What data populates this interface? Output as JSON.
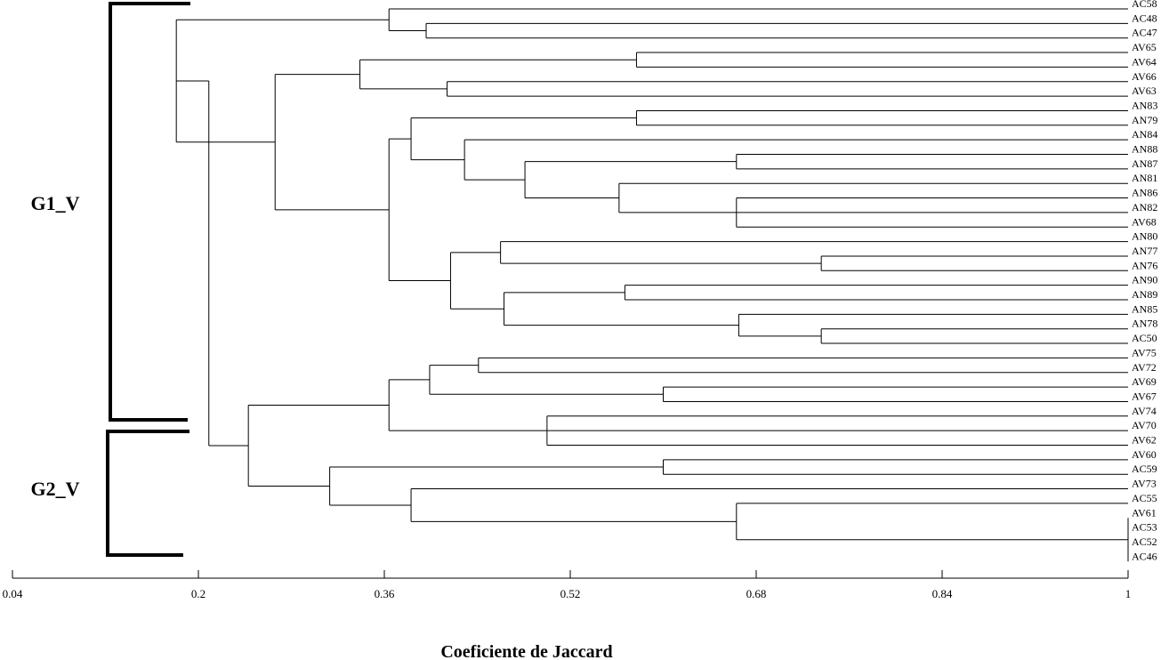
{
  "chart_data": {
    "type": "dendrogram",
    "title": "",
    "xlabel": "Coeficiente de Jaccard",
    "ylabel": "",
    "xlim": [
      0.04,
      1
    ],
    "x_ticks": [
      "0.04",
      "0.2",
      "0.36",
      "0.52",
      "0.68",
      "0.84",
      "1"
    ],
    "leaves": [
      "AC58",
      "AC48",
      "AC47",
      "AV65",
      "AV64",
      "AV66",
      "AV63",
      "AN83",
      "AN79",
      "AN84",
      "AN88",
      "AN87",
      "AN81",
      "AN86",
      "AN82",
      "AV68",
      "AN80",
      "AN77",
      "AN76",
      "AN90",
      "AN89",
      "AN85",
      "AN78",
      "AC50",
      "AV75",
      "AV72",
      "AV69",
      "AV67",
      "AV74",
      "AV70",
      "AV62",
      "AV60",
      "AC59",
      "AV73",
      "AC55",
      "AV61",
      "AC53",
      "AC52",
      "AC46"
    ],
    "groups": [
      {
        "label": "G1_V",
        "from_leaf": "AC58",
        "to_leaf": "AC50"
      },
      {
        "label": "G2_V",
        "from_leaf": "AV75",
        "to_leaf": "AC46"
      }
    ],
    "tree": {
      "s": 0.209,
      "c": [
        {
          "s": 0.181,
          "c": [
            {
              "s": 0.364,
              "c": [
                "AC58",
                {
                  "s": 0.396,
                  "c": [
                    "AC48",
                    "AC47"
                  ]
                }
              ]
            },
            {
              "s": 0.266,
              "c": [
                {
                  "s": 0.339,
                  "c": [
                    {
                      "s": 0.577,
                      "c": [
                        "AV65",
                        "AV64"
                      ]
                    },
                    {
                      "s": 0.414,
                      "c": [
                        "AV66",
                        "AV63"
                      ]
                    }
                  ]
                },
                {
                  "s": 0.364,
                  "c": [
                    {
                      "s": 0.383,
                      "c": [
                        {
                          "s": 0.577,
                          "c": [
                            "AN83",
                            "AN79"
                          ]
                        },
                        {
                          "s": 0.429,
                          "c": [
                            "AN84",
                            {
                              "s": 0.481,
                              "c": [
                                {
                                  "s": 0.663,
                                  "c": [
                                    "AN88",
                                    "AN87"
                                  ]
                                },
                                {
                                  "s": 0.562,
                                  "c": [
                                    "AN81",
                                    {
                                      "s": 0.663,
                                      "c": [
                                        "AN86",
                                        "AN82",
                                        "AV68"
                                      ]
                                    }
                                  ]
                                }
                              ]
                            }
                          ]
                        }
                      ]
                    },
                    {
                      "s": 0.417,
                      "c": [
                        {
                          "s": 0.46,
                          "c": [
                            "AN80",
                            {
                              "s": 0.736,
                              "c": [
                                "AN77",
                                "AN76"
                              ]
                            }
                          ]
                        },
                        {
                          "s": 0.463,
                          "c": [
                            {
                              "s": 0.567,
                              "c": [
                                "AN90",
                                "AN89"
                              ]
                            },
                            {
                              "s": 0.665,
                              "c": [
                                "AN85",
                                {
                                  "s": 0.736,
                                  "c": [
                                    "AN78",
                                    "AC50"
                                  ]
                                }
                              ]
                            }
                          ]
                        }
                      ]
                    }
                  ]
                }
              ]
            }
          ]
        },
        {
          "s": 0.243,
          "c": [
            {
              "s": 0.364,
              "c": [
                {
                  "s": 0.399,
                  "c": [
                    {
                      "s": 0.441,
                      "c": [
                        "AV75",
                        "AV72"
                      ]
                    },
                    {
                      "s": 0.6,
                      "c": [
                        "AV69",
                        "AV67"
                      ]
                    }
                  ]
                },
                {
                  "s": 0.5,
                  "c": [
                    "AV74",
                    "AV70",
                    "AV62"
                  ]
                }
              ]
            },
            {
              "s": 0.313,
              "c": [
                {
                  "s": 0.6,
                  "c": [
                    "AV60",
                    "AC59"
                  ]
                },
                {
                  "s": 0.383,
                  "c": [
                    "AV73",
                    {
                      "s": 0.663,
                      "c": [
                        "AC55",
                        {
                          "s": 1.0,
                          "c": [
                            "AV61",
                            "AC53",
                            "AC52",
                            "AC46"
                          ]
                        }
                      ]
                    }
                  ]
                }
              ]
            }
          ]
        }
      ]
    }
  }
}
